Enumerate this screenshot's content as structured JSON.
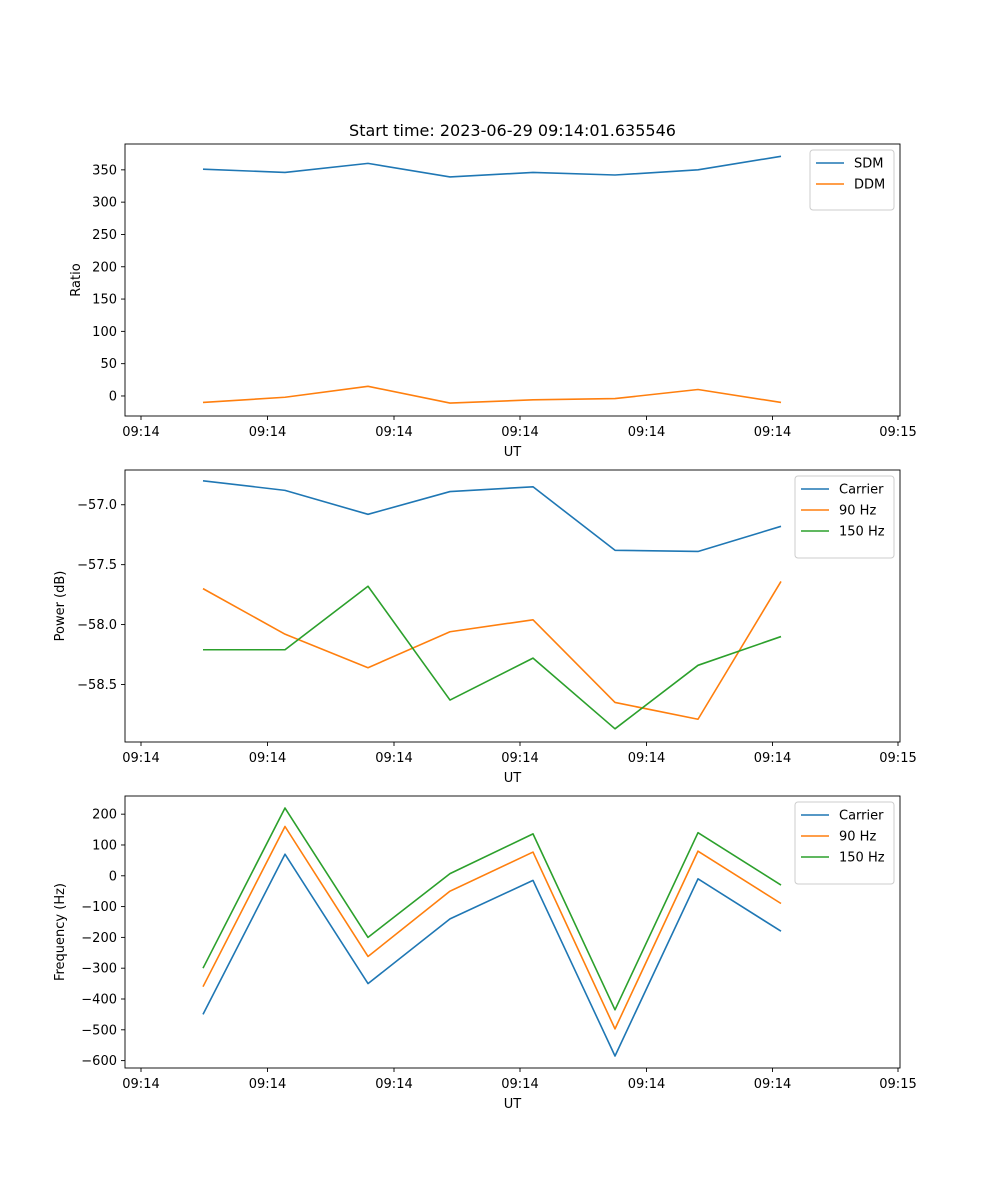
{
  "chart_data": [
    {
      "type": "line",
      "title": "Start time: 2023-06-29 09:14:01.635546",
      "xlabel": "UT",
      "ylabel": "Ratio",
      "x_tick_labels": [
        "09:14",
        "09:14",
        "09:14",
        "09:14",
        "09:14",
        "09:14",
        "09:15"
      ],
      "y_ticks": [
        0,
        50,
        100,
        150,
        200,
        250,
        300,
        350
      ],
      "y_tick_labels": [
        "0",
        "50",
        "100",
        "150",
        "200",
        "250",
        "300",
        "350"
      ],
      "ylim": [
        -31,
        390
      ],
      "legend_position": "top-right",
      "series": [
        {
          "name": "SDM",
          "color": "#1f77b4",
          "values": [
            351,
            346,
            360,
            339,
            346,
            342,
            350,
            371
          ]
        },
        {
          "name": "DDM",
          "color": "#ff7f0e",
          "values": [
            -10,
            -2,
            15,
            -11,
            -6,
            -4,
            10,
            -10
          ]
        }
      ]
    },
    {
      "type": "line",
      "title": "",
      "xlabel": "UT",
      "ylabel": "Power (dB)",
      "x_tick_labels": [
        "09:14",
        "09:14",
        "09:14",
        "09:14",
        "09:14",
        "09:14",
        "09:15"
      ],
      "y_ticks": [
        -58.5,
        -58.0,
        -57.5,
        -57.0
      ],
      "y_tick_labels": [
        "−58.5",
        "−58.0",
        "−57.5",
        "−57.0"
      ],
      "ylim": [
        -58.98,
        -56.71
      ],
      "legend_position": "top-right",
      "series": [
        {
          "name": "Carrier",
          "color": "#1f77b4",
          "values": [
            -56.8,
            -56.88,
            -57.08,
            -56.89,
            -56.85,
            -57.38,
            -57.39,
            -57.18
          ]
        },
        {
          "name": "90 Hz",
          "color": "#ff7f0e",
          "values": [
            -57.7,
            -58.08,
            -58.36,
            -58.06,
            -57.96,
            -58.65,
            -58.79,
            -57.64
          ]
        },
        {
          "name": "150 Hz",
          "color": "#2ca02c",
          "values": [
            -58.21,
            -58.21,
            -57.68,
            -58.63,
            -58.28,
            -58.87,
            -58.34,
            -58.1
          ]
        }
      ]
    },
    {
      "type": "line",
      "title": "",
      "xlabel": "UT",
      "ylabel": "Frequency (Hz)",
      "x_tick_labels": [
        "09:14",
        "09:14",
        "09:14",
        "09:14",
        "09:14",
        "09:14",
        "09:15"
      ],
      "y_ticks": [
        -600,
        -500,
        -400,
        -300,
        -200,
        -100,
        0,
        100,
        200
      ],
      "y_tick_labels": [
        "−600",
        "−500",
        "−400",
        "−300",
        "−200",
        "−100",
        "0",
        "100",
        "200"
      ],
      "ylim": [
        -624,
        259
      ],
      "legend_position": "top-right",
      "series": [
        {
          "name": "Carrier",
          "color": "#1f77b4",
          "values": [
            -450,
            70,
            -350,
            -140,
            -15,
            -585,
            -10,
            -180
          ]
        },
        {
          "name": "90 Hz",
          "color": "#ff7f0e",
          "values": [
            -360,
            160,
            -262,
            -50,
            77,
            -497,
            80,
            -90
          ]
        },
        {
          "name": "150 Hz",
          "color": "#2ca02c",
          "values": [
            -300,
            220,
            -200,
            7,
            136,
            -435,
            140,
            -30
          ]
        }
      ]
    }
  ]
}
